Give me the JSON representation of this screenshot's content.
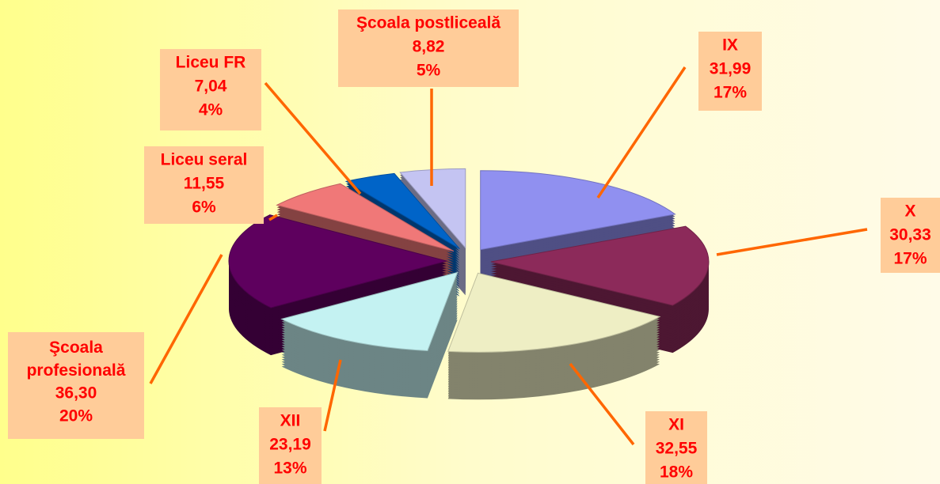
{
  "chart_data": {
    "type": "pie3d",
    "categories": [
      "IX",
      "X",
      "XI",
      "XII",
      "Şcoala profesională",
      "Liceu seral",
      "Liceu FR",
      "Şcoala postliceală"
    ],
    "values": [
      31.99,
      30.33,
      32.55,
      23.19,
      36.3,
      11.55,
      7.04,
      8.82
    ],
    "value_labels": [
      "31,99",
      "30,33",
      "32,55",
      "23,19",
      "36,30",
      "11,55",
      "7,04",
      "8,82"
    ],
    "percents": [
      17,
      17,
      18,
      13,
      20,
      6,
      4,
      5
    ],
    "percent_labels": [
      "17%",
      "17%",
      "18%",
      "13%",
      "20%",
      "6%",
      "4%",
      "5%"
    ],
    "colors": [
      "#9090f0",
      "#8c2a5a",
      "#eeeec4",
      "#c4f2f2",
      "#5e005e",
      "#f07878",
      "#0064c8",
      "#c4c4f2"
    ]
  }
}
